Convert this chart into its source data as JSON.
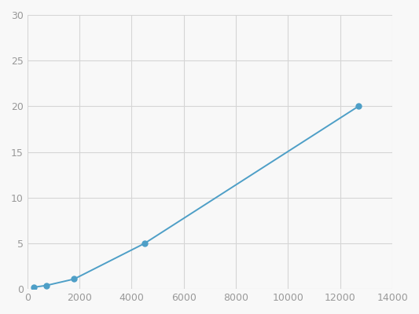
{
  "x": [
    246,
    740,
    1800,
    4500,
    12700
  ],
  "y": [
    0.2,
    0.4,
    1.1,
    5.0,
    20.0
  ],
  "line_color": "#4e9fc7",
  "marker_color": "#4e9fc7",
  "marker_size": 5,
  "xlim": [
    0,
    14000
  ],
  "ylim": [
    0,
    30
  ],
  "xticks": [
    0,
    2000,
    4000,
    6000,
    8000,
    10000,
    12000,
    14000
  ],
  "yticks": [
    0,
    5,
    10,
    15,
    20,
    25,
    30
  ],
  "grid_color": "#d5d5d5",
  "background_color": "#f8f8f8",
  "tick_fontsize": 9,
  "linewidth": 1.4
}
